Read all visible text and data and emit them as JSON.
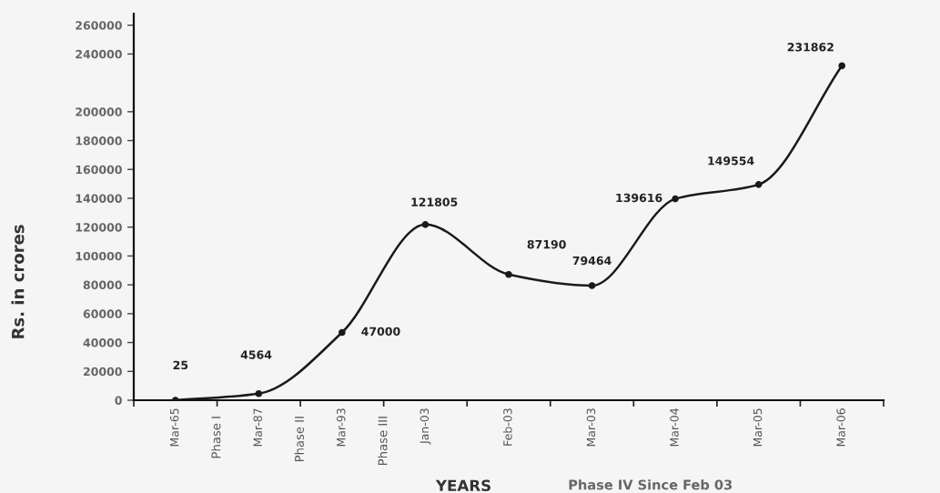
{
  "chart_data": {
    "type": "line",
    "categories": [
      "Mar-65",
      "Mar-87",
      "Mar-93",
      "Jan-03",
      "Feb-03",
      "Mar-03",
      "Mar-04",
      "Mar-05",
      "Mar-06"
    ],
    "series": [
      {
        "color": "#1a1a1a",
        "values": [
          25,
          4564,
          47000,
          121805,
          87190,
          79464,
          139616,
          149554,
          231862
        ]
      }
    ],
    "xlabel": "YEARS",
    "ylabel": "Rs. in crores",
    "annotations": [
      "Phase I",
      "Phase II",
      "Phase III",
      "Phase IV Since Feb 03"
    ],
    "ylim": [
      0,
      268000
    ],
    "yticks": [
      0,
      20000,
      40000,
      60000,
      80000,
      100000,
      120000,
      140000,
      160000,
      180000,
      200000,
      240000,
      260000
    ],
    "grid": false,
    "marker": "circle",
    "line_style": "solid",
    "data_labels": true
  }
}
